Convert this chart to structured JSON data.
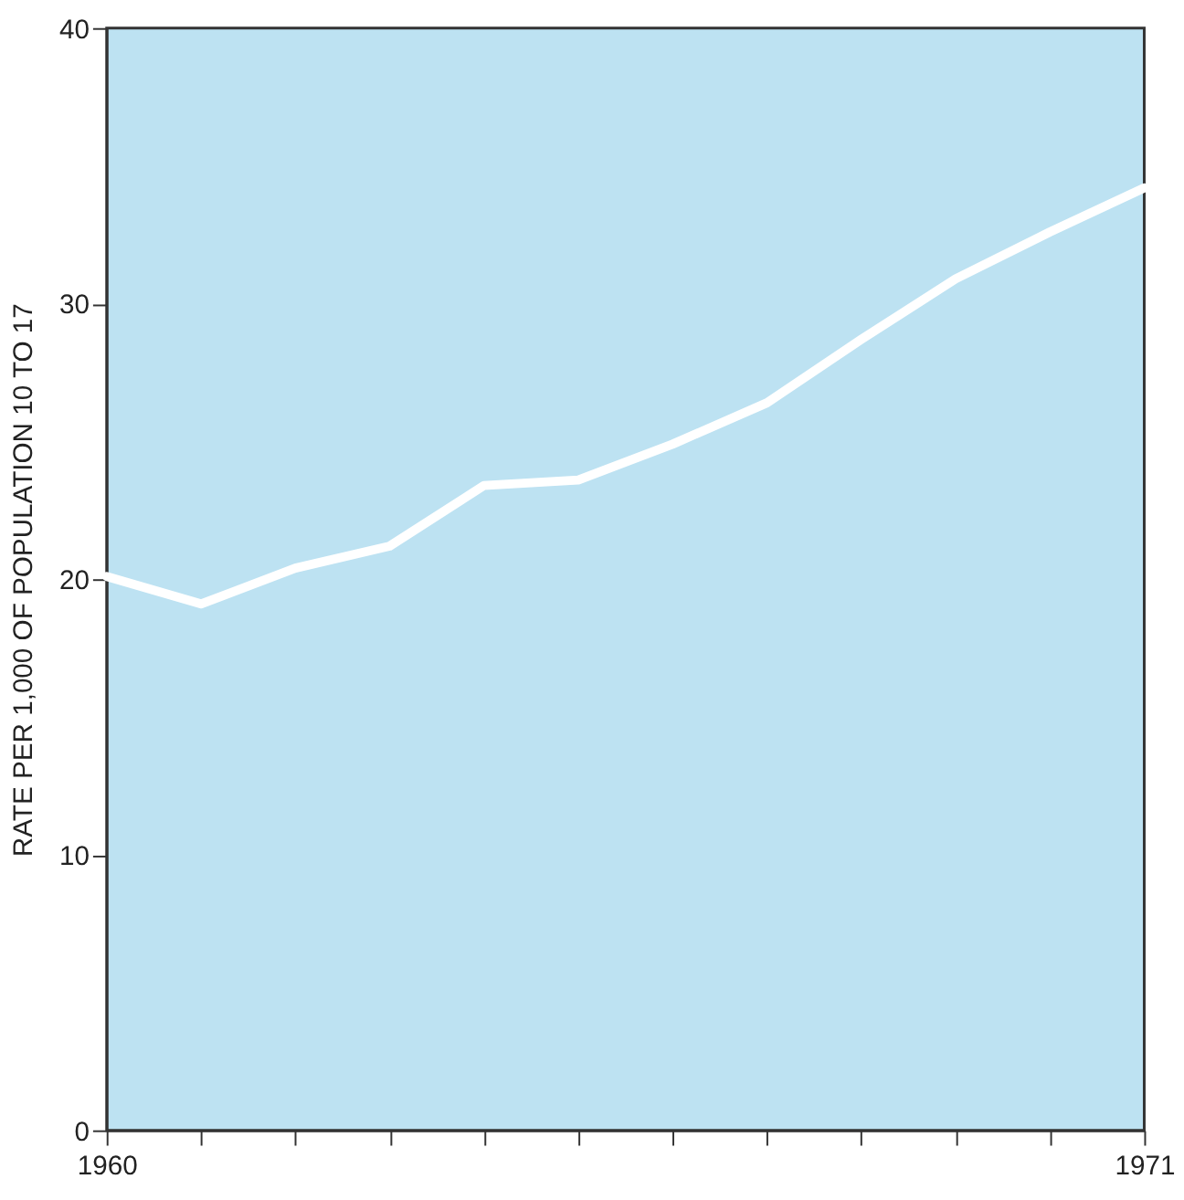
{
  "chart_data": {
    "type": "line",
    "ylabel": "RATE PER 1,000 OF POPULATION 10 TO 17",
    "x": [
      1960,
      1961,
      1962,
      1963,
      1964,
      1965,
      1966,
      1967,
      1968,
      1969,
      1970,
      1971
    ],
    "series": [
      {
        "color": "#ffffff",
        "values": [
          20.1,
          19.1,
          20.4,
          21.2,
          23.4,
          23.6,
          24.9,
          26.4,
          28.7,
          30.9,
          32.6,
          34.2
        ]
      }
    ],
    "xlim": [
      1960,
      1971
    ],
    "xticks": [
      1960,
      {
        "value": 1961,
        "label": null
      },
      {
        "value": 1962,
        "label": null
      },
      {
        "value": 1963,
        "label": null
      },
      {
        "value": 1964,
        "label": null
      },
      {
        "value": 1965,
        "label": null
      },
      {
        "value": 1966,
        "label": null
      },
      {
        "value": 1967,
        "label": null
      },
      {
        "value": 1968,
        "label": null
      },
      {
        "value": 1969,
        "label": null
      },
      {
        "value": 1970,
        "label": null
      },
      1971
    ],
    "ylim": [
      0,
      40
    ],
    "yticks": [
      0,
      10,
      20,
      30,
      40
    ],
    "grid": false,
    "legend": false,
    "line_style": "solid",
    "marker": "none"
  }
}
